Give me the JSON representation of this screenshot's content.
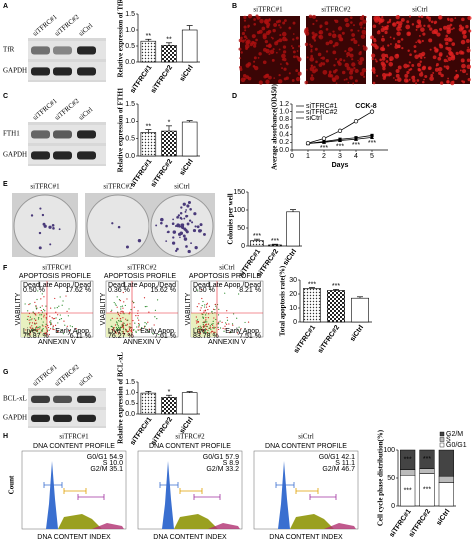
{
  "panels": {
    "A": {
      "letter": "A",
      "lanes": [
        "siTFRC#1",
        "siTFRC#2",
        "siCtrl"
      ],
      "rows": [
        "TfR",
        "GAPDH"
      ]
    },
    "B": {
      "letter": "B",
      "labels": [
        "siTFRC#1",
        "siTFRC#2",
        "siCtrl"
      ]
    },
    "C": {
      "letter": "C",
      "lanes": [
        "siTFRC#1",
        "siTFRC#2",
        "siCtrl"
      ],
      "rows": [
        "FTH1",
        "GAPDH"
      ]
    },
    "D": {
      "letter": "D"
    },
    "E": {
      "letter": "E",
      "labels": [
        "siTFRC#1",
        "siTFRC#2",
        "siCtrl"
      ]
    },
    "F": {
      "letter": "F",
      "labels": [
        "siTFRC#1",
        "siTFRC#2",
        "siCtrl"
      ],
      "plots": [
        {
          "title": "APOPTOSIS PROFILE",
          "quadrants": [
            "Dead",
            "Late Apop./Dead",
            "Live",
            "Early Apop."
          ],
          "percents": [
            "0.50 %",
            "17.62 %",
            "75.87 %",
            "6.11 %"
          ],
          "ylabel": "VIABILITY",
          "xlabel": "ANNEXIN V"
        },
        {
          "title": "APOPTOSIS PROFILE",
          "quadrants": [
            "Dead",
            "Late Apop./Dead",
            "Live",
            "Early Apop."
          ],
          "percents": [
            "0.36 %",
            "15.62 %",
            "76.27 %",
            "7.61 %"
          ],
          "ylabel": "VIABILITY",
          "xlabel": "ANNEXIN V"
        },
        {
          "title": "APOPTOSIS PROFILE",
          "quadrants": [
            "Dead",
            "Late Apop./Dead",
            "Live",
            "Early Apop."
          ],
          "percents": [
            "0.50 %",
            "8.21 %",
            "83.78 %",
            "7.51 %"
          ],
          "ylabel": "VIABILITY",
          "xlabel": "ANNEXIN V"
        }
      ]
    },
    "G": {
      "letter": "G",
      "lanes": [
        "siTFRC#1",
        "siTFRC#2",
        "siCtrl"
      ],
      "rows": [
        "BCL-xL",
        "GAPDH"
      ]
    },
    "H": {
      "letter": "H",
      "labels": [
        "siTFRC#1",
        "siTFRC#2",
        "siCtrl"
      ],
      "ylabel": "Count",
      "plots": [
        {
          "title": "DNA CONTENT PROFILE",
          "stats": [
            "G0/G1 54.9",
            "S 10.0",
            "G2/M 35.1"
          ],
          "xlabel": "DNA CONTENT INDEX"
        },
        {
          "title": "DNA CONTENT PROFILE",
          "stats": [
            "G0/G1 57.9",
            "S 8.9",
            "G2/M 33.2"
          ],
          "xlabel": "DNA CONTENT INDEX"
        },
        {
          "title": "DNA CONTENT PROFILE",
          "stats": [
            "G0/G1 42.1",
            "S 11.1",
            "G2/M 46.7"
          ],
          "xlabel": "DNA CONTENT INDEX"
        }
      ]
    }
  },
  "chart_data": [
    {
      "type": "bar",
      "ylabel": "Relative expression of TfR",
      "categories": [
        "siTFRC#1",
        "siTFRC#2",
        "siCtrl"
      ],
      "values": [
        0.65,
        0.52,
        1.0
      ],
      "errors": [
        0.06,
        0.08,
        0.14
      ],
      "annotations": [
        "**",
        "**",
        null
      ],
      "ylim": [
        0,
        1.5
      ],
      "yticks": [
        {
          "value": 0,
          "label": "0.0"
        },
        0.5,
        {
          "value": 1,
          "label": "1.0"
        },
        1.5
      ]
    },
    {
      "type": "bar",
      "ylabel": "Relative expression of FTH1",
      "categories": [
        "siTFRC#1",
        "siTFRC#2",
        "siCtrl"
      ],
      "values": [
        0.68,
        0.72,
        0.98
      ],
      "errors": [
        0.08,
        0.15,
        0.04
      ],
      "annotations": [
        "**",
        "*",
        null
      ],
      "ylim": [
        0,
        1.5
      ],
      "yticks": [
        {
          "value": 0,
          "label": "0.0"
        },
        0.5,
        {
          "value": 1,
          "label": "1.0"
        },
        1.5
      ]
    },
    {
      "type": "line",
      "title": "CCK-8",
      "xlabel": "Days",
      "ylabel": "Average absorbance(OD450)",
      "x": [
        1,
        2,
        3,
        4,
        5
      ],
      "series": [
        {
          "name": "siTFRC#1",
          "color": "#000000",
          "values": [
            0.17,
            0.22,
            0.28,
            0.32,
            0.38
          ]
        },
        {
          "name": "siTFRC#2",
          "color": "#000000",
          "values": [
            0.17,
            0.2,
            0.25,
            0.28,
            0.33
          ]
        },
        {
          "name": "siCtrl",
          "color": "#000000",
          "values": [
            0.18,
            0.3,
            0.5,
            0.75,
            1.0
          ]
        }
      ],
      "annotations": [
        null,
        "***",
        "***",
        "***",
        "***"
      ],
      "legend": "upper left",
      "xlim": [
        0,
        6
      ],
      "xticks": [
        0,
        1,
        2,
        3,
        4,
        5
      ],
      "ylim": [
        0,
        1.2
      ],
      "yticks": [
        {
          "value": 0,
          "label": "0.0"
        },
        0.2,
        0.4,
        0.6,
        0.8,
        {
          "value": 1,
          "label": "1.0"
        },
        1.2
      ]
    },
    {
      "type": "bar",
      "ylabel": "Colonies per well",
      "categories": [
        "siTFRC#1",
        "siTFRC#2",
        "siCtrl"
      ],
      "values": [
        15,
        3,
        95
      ],
      "errors": [
        4,
        2,
        6
      ],
      "annotations": [
        "***",
        "***",
        null
      ],
      "ylim": [
        0,
        150
      ],
      "yticks": [
        0,
        50,
        100,
        150
      ]
    },
    {
      "type": "bar",
      "ylabel": "Total apoptosis rate(%)",
      "categories": [
        "siTFRC#1",
        "siTFRC#2",
        "siCtrl"
      ],
      "values": [
        24,
        22.5,
        17
      ],
      "errors": [
        0.6,
        0.8,
        1
      ],
      "annotations": [
        "***",
        "***",
        null
      ],
      "ylim": [
        0,
        30
      ],
      "yticks": [
        0,
        10,
        20,
        30
      ]
    },
    {
      "type": "bar",
      "ylabel": "Relative expression of BCL-xL",
      "categories": [
        "siTFRC#1",
        "siTFRC#2",
        "siCtrl"
      ],
      "values": [
        0.98,
        0.78,
        1.0
      ],
      "errors": [
        0.08,
        0.1,
        0.05
      ],
      "annotations": [
        null,
        "*",
        null
      ],
      "ylim": [
        0,
        1.5
      ],
      "yticks": [
        {
          "value": 0,
          "label": "0.0"
        },
        0.5,
        {
          "value": 1,
          "label": "1.0"
        },
        1.5
      ]
    },
    {
      "type": "stacked",
      "ylabel": "Cell cycle phase distribution(%)",
      "categories": [
        "siTFRC#1",
        "siTFRC#2",
        "siCtrl"
      ],
      "series": [
        {
          "name": "G0/G1",
          "color": "#ffffff",
          "values": [
            54.9,
            57.9,
            42.1
          ],
          "annotations": [
            "***",
            "***",
            null
          ]
        },
        {
          "name": "S",
          "color": "#bbbbbb",
          "values": [
            10.0,
            8.9,
            11.1
          ]
        },
        {
          "name": "G2/M",
          "color": "#444444",
          "values": [
            35.1,
            33.2,
            46.7
          ],
          "annotations": [
            "***",
            "***",
            null
          ]
        }
      ],
      "legend": "upper right",
      "ylim": [
        0,
        100
      ],
      "yticks": [
        0,
        50,
        100
      ]
    }
  ]
}
